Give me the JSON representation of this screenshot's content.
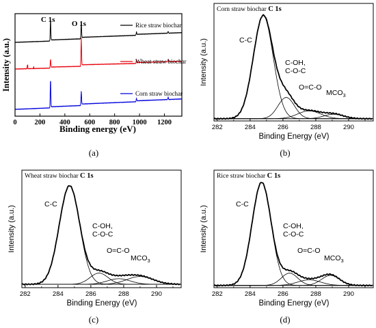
{
  "chart_data": [
    {
      "panel": "a",
      "caption": "(a)",
      "type": "line",
      "xlabel": "Binding energy (eV)",
      "ylabel": "Intensity (a.u.)",
      "xlim": [
        0,
        1340
      ],
      "xticks": [
        "0",
        "200",
        "400",
        "600",
        "800",
        "1000",
        "1200"
      ],
      "peak_labels": [
        {
          "text": "C 1s",
          "x": 285
        },
        {
          "text": "O 1s",
          "x": 532
        }
      ],
      "series": [
        {
          "name": "Rice straw biochar",
          "color": "#000000",
          "peaks": [
            {
              "x": 285,
              "h": 4.5
            },
            {
              "x": 532,
              "h": 3.5
            },
            {
              "x": 975,
              "h": 0.6
            },
            {
              "x": 1230,
              "h": 0.4
            }
          ]
        },
        {
          "name": "Wheat straw biochar",
          "color": "#e8000b",
          "peaks": [
            {
              "x": 285,
              "h": 1.8
            },
            {
              "x": 532,
              "h": 6.0
            },
            {
              "x": 975,
              "h": 0.7
            },
            {
              "x": 1230,
              "h": 0.5
            }
          ]
        },
        {
          "name": "Corn straw biochar",
          "color": "#0000dd",
          "peaks": [
            {
              "x": 285,
              "h": 6.0
            },
            {
              "x": 532,
              "h": 3.0
            },
            {
              "x": 975,
              "h": 0.6
            },
            {
              "x": 1230,
              "h": 0.5
            }
          ]
        }
      ]
    },
    {
      "panel": "b",
      "caption": "(b)",
      "type": "line",
      "title_prefix": "Corn straw biochar ",
      "title_bold": "C 1s",
      "xlabel": "Binding Energy (eV)",
      "ylabel": "Intensity (a.u.)",
      "xlim": [
        281.8,
        291.5
      ],
      "xticks": [
        "282",
        "284",
        "286",
        "288",
        "290"
      ],
      "components": [
        {
          "name": "C-C",
          "center": 284.8,
          "height": 0.92,
          "sigma": 0.6
        },
        {
          "name": "C-OH, C-O-C",
          "center": 286.2,
          "height": 0.19,
          "sigma": 0.5
        },
        {
          "name": "O=C-O",
          "center": 287.6,
          "height": 0.07,
          "sigma": 0.7
        },
        {
          "name": "MCO3",
          "center": 289.1,
          "height": 0.04,
          "sigma": 0.6
        }
      ],
      "baseline": 0.02,
      "peak_labels": [
        {
          "line1": "C-C"
        },
        {
          "line1": "C-OH,",
          "line2": "C-O-C"
        },
        {
          "line1": "O=C-O"
        },
        {
          "line1": "MCO",
          "sub": "3"
        }
      ]
    },
    {
      "panel": "c",
      "caption": "(c)",
      "type": "line",
      "title_prefix": "Wheat straw biochar ",
      "title_bold": "C 1s",
      "xlabel": "Binding Energy (eV)",
      "ylabel": "Intensity (a.u.)",
      "xlim": [
        281.8,
        291.5
      ],
      "xticks": [
        "282",
        "284",
        "286",
        "288",
        "290"
      ],
      "components": [
        {
          "name": "C-C",
          "center": 284.7,
          "height": 0.88,
          "sigma": 0.62
        },
        {
          "name": "C-OH, C-O-C",
          "center": 286.5,
          "height": 0.1,
          "sigma": 0.55
        },
        {
          "name": "O=C-O",
          "center": 287.7,
          "height": 0.05,
          "sigma": 0.7
        },
        {
          "name": "MCO3",
          "center": 289.0,
          "height": 0.07,
          "sigma": 0.8
        }
      ],
      "baseline": 0.03,
      "peak_labels": [
        {
          "line1": "C-C"
        },
        {
          "line1": "C-OH,",
          "line2": "C-O-C"
        },
        {
          "line1": "O=C-O"
        },
        {
          "line1": "MCO",
          "sub": "3"
        }
      ]
    },
    {
      "panel": "d",
      "caption": "(d)",
      "type": "line",
      "title_prefix": "Rice straw biochar ",
      "title_bold": "C 1s",
      "xlabel": "Binding Energy (eV)",
      "ylabel": "Intensity (a.u.)",
      "xlim": [
        281.8,
        291.5
      ],
      "xticks": [
        "282",
        "284",
        "286",
        "288",
        "290"
      ],
      "components": [
        {
          "name": "C-C",
          "center": 284.7,
          "height": 0.92,
          "sigma": 0.58
        },
        {
          "name": "C-OH, C-O-C",
          "center": 286.4,
          "height": 0.11,
          "sigma": 0.5
        },
        {
          "name": "O=C-O",
          "center": 287.6,
          "height": 0.05,
          "sigma": 0.7
        },
        {
          "name": "MCO3",
          "center": 288.9,
          "height": 0.09,
          "sigma": 0.55
        }
      ],
      "baseline": 0.02,
      "peak_labels": [
        {
          "line1": "C-C"
        },
        {
          "line1": "C-OH,",
          "line2": "C-O-C"
        },
        {
          "line1": "O=C-O"
        },
        {
          "line1": "MCO",
          "sub": "3"
        }
      ]
    }
  ]
}
